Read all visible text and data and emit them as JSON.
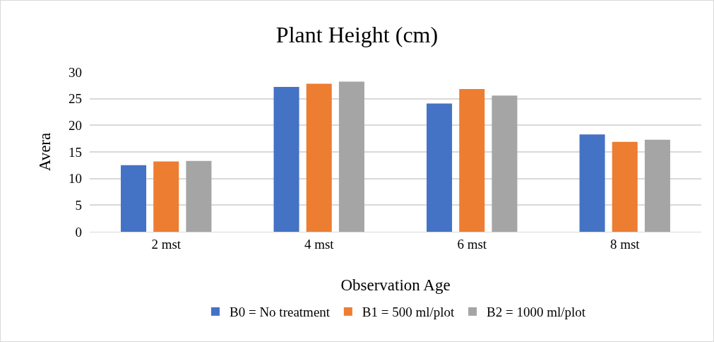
{
  "chart_data": {
    "type": "bar",
    "title": "Plant Height (cm)",
    "xlabel": "Observation Age",
    "ylabel": "Avera",
    "categories": [
      "2 mst",
      "4 mst",
      "6 mst",
      "8 mst"
    ],
    "series": [
      {
        "name": "B0 = No treatment",
        "color": "#4472c4",
        "values": [
          12.5,
          27.2,
          24.1,
          18.3
        ]
      },
      {
        "name": "B1 = 500 ml/plot",
        "color": "#ed7d31",
        "values": [
          13.2,
          27.8,
          26.8,
          16.9
        ]
      },
      {
        "name": "B2 = 1000 ml/plot",
        "color": "#a5a5a5",
        "values": [
          13.3,
          28.2,
          25.6,
          17.3
        ]
      }
    ],
    "ylim": [
      0,
      30
    ],
    "yticks": [
      0,
      5,
      10,
      15,
      20,
      25,
      30
    ],
    "grid": "y",
    "legend": "bottom"
  }
}
